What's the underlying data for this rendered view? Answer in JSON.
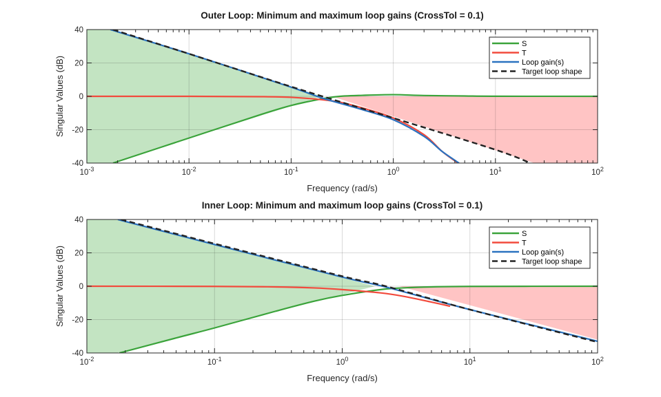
{
  "chart_data": [
    {
      "type": "line",
      "title": "Outer Loop: Minimum and maximum loop gains (CrossTol = 0.1)",
      "xlabel": "Frequency (rad/s)",
      "ylabel": "Singular Values (dB)",
      "xscale": "log",
      "xlim": [
        0.001,
        100
      ],
      "ylim": [
        -40,
        40
      ],
      "xticks": [
        0.001,
        0.01,
        0.1,
        1,
        10,
        100
      ],
      "xtick_labels": [
        {
          "base": "10",
          "exp": "-3"
        },
        {
          "base": "10",
          "exp": "-2"
        },
        {
          "base": "10",
          "exp": "-1"
        },
        {
          "base": "10",
          "exp": "0"
        },
        {
          "base": "10",
          "exp": "1"
        },
        {
          "base": "10",
          "exp": "2"
        }
      ],
      "yticks": [
        -40,
        -20,
        0,
        20,
        40
      ],
      "ytick_labels": [
        "-40",
        "-20",
        "0",
        "20",
        "40"
      ],
      "grid": true,
      "legend_position": "top-right",
      "shaded_regions": [
        {
          "name": "min-gain-region",
          "color": "#c3e4c2",
          "upper": {
            "x": [
              0.001,
              0.0017,
              0.2
            ],
            "y": [
              40,
              40,
              0
            ]
          },
          "lower": {
            "x": [
              0.001,
              0.0017,
              0.2
            ],
            "y": [
              -40,
              -40,
              0
            ]
          }
        },
        {
          "name": "max-gain-region",
          "color": "#ffc4c4",
          "upper": {
            "x": [
              0.25,
              100
            ],
            "y": [
              0,
              0
            ]
          },
          "lower": {
            "x": [
              0.25,
              1,
              24,
              100
            ],
            "y": [
              0,
              -12,
              -40,
              -40
            ]
          }
        }
      ],
      "series": [
        {
          "name": "S",
          "color": "#3aa33a",
          "dash": false,
          "x": [
            0.0018,
            0.01,
            0.05,
            0.1,
            0.2,
            0.3,
            0.5,
            1,
            2,
            5,
            10,
            100
          ],
          "y": [
            -40,
            -25,
            -11,
            -5.5,
            -1.5,
            0,
            0.6,
            1.0,
            0.5,
            0.2,
            0.05,
            0
          ]
        },
        {
          "name": "T",
          "color": "#f24a3c",
          "dash": false,
          "x": [
            0.001,
            0.01,
            0.05,
            0.1,
            0.2,
            0.3,
            0.5,
            1,
            2,
            3,
            4.3
          ],
          "y": [
            0,
            0,
            -0.2,
            -0.6,
            -2,
            -3.5,
            -7,
            -13,
            -23,
            -33,
            -40
          ]
        },
        {
          "name": "Loop gain(s)",
          "color": "#2a72c0",
          "dash": false,
          "x": [
            0.0017,
            0.01,
            0.1,
            0.2,
            0.5,
            1,
            2,
            3,
            4.4
          ],
          "y": [
            40,
            25.5,
            5.5,
            -1,
            -8,
            -14,
            -24,
            -33,
            -40
          ]
        },
        {
          "name": "Target loop shape",
          "color": "#222222",
          "dash": true,
          "x": [
            0.0018,
            0.01,
            0.1,
            1,
            10,
            22
          ],
          "y": [
            40,
            25.5,
            5.8,
            -13,
            -32,
            -40
          ]
        }
      ],
      "legend": [
        "S",
        "T",
        "Loop gain(s)",
        "Target loop shape"
      ]
    },
    {
      "type": "line",
      "title": "Inner Loop: Minimum and maximum loop gains (CrossTol = 0.1)",
      "xlabel": "Frequency (rad/s)",
      "ylabel": "Singular Values (dB)",
      "xscale": "log",
      "xlim": [
        0.01,
        100
      ],
      "ylim": [
        -40,
        40
      ],
      "xticks": [
        0.01,
        0.1,
        1,
        10,
        100
      ],
      "xtick_labels": [
        {
          "base": "10",
          "exp": "-2"
        },
        {
          "base": "10",
          "exp": "-1"
        },
        {
          "base": "10",
          "exp": "0"
        },
        {
          "base": "10",
          "exp": "1"
        },
        {
          "base": "10",
          "exp": "2"
        }
      ],
      "yticks": [
        -40,
        -20,
        0,
        20,
        40
      ],
      "ytick_labels": [
        "-40",
        "-20",
        "0",
        "20",
        "40"
      ],
      "grid": true,
      "legend_position": "top-right",
      "shaded_regions": [
        {
          "name": "min-gain-region",
          "color": "#c3e4c2",
          "upper": {
            "x": [
              0.01,
              0.017,
              1.8
            ],
            "y": [
              40,
              40,
              0
            ]
          },
          "lower": {
            "x": [
              0.01,
              0.017,
              1.8
            ],
            "y": [
              -40,
              -40,
              0
            ]
          }
        },
        {
          "name": "max-gain-region",
          "color": "#ffc4c4",
          "upper": {
            "x": [
              2.8,
              100
            ],
            "y": [
              0,
              0
            ]
          },
          "lower": {
            "x": [
              2.8,
              100
            ],
            "y": [
              0,
              -32
            ]
          }
        }
      ],
      "series": [
        {
          "name": "S",
          "color": "#3aa33a",
          "dash": false,
          "x": [
            0.018,
            0.05,
            0.1,
            0.3,
            0.6,
            1,
            2,
            3,
            5,
            10,
            100
          ],
          "y": [
            -40,
            -31,
            -25,
            -15,
            -9,
            -5.5,
            -2,
            -1,
            -0.4,
            -0.1,
            0
          ]
        },
        {
          "name": "T",
          "color": "#f24a3c",
          "dash": false,
          "x": [
            0.01,
            0.1,
            0.3,
            0.6,
            1,
            2,
            3,
            5,
            7
          ],
          "y": [
            0,
            -0.1,
            -0.4,
            -1,
            -2,
            -4,
            -6,
            -9.5,
            -12
          ]
        },
        {
          "name": "Loop gain(s)",
          "color": "#2a72c0",
          "dash": false,
          "x": [
            0.0175,
            0.1,
            1,
            2.2,
            10,
            100
          ],
          "y": [
            40,
            25,
            5.5,
            -0.5,
            -14,
            -33
          ]
        },
        {
          "name": "Target loop shape",
          "color": "#222222",
          "dash": true,
          "x": [
            0.0185,
            0.1,
            1,
            2.2,
            10,
            100
          ],
          "y": [
            40,
            25.5,
            6,
            0,
            -14,
            -33.5
          ]
        }
      ],
      "legend": [
        "S",
        "T",
        "Loop gain(s)",
        "Target loop shape"
      ]
    }
  ]
}
